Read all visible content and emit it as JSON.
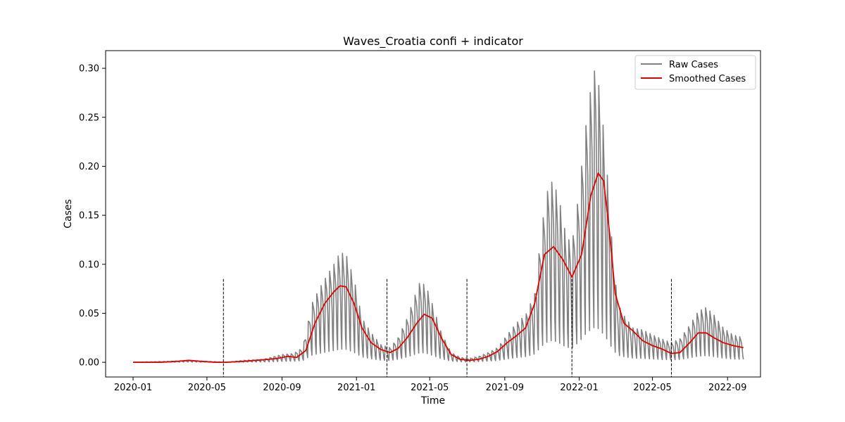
{
  "chart_data": {
    "type": "line",
    "title": "Waves_Croatia confi + indicator",
    "xlabel": "Time",
    "ylabel": "Cases",
    "xlim": [
      "2019-11-17",
      "2022-10-25"
    ],
    "ylim": [
      -0.015,
      0.318
    ],
    "x_ticks": [
      "2020-01",
      "2020-05",
      "2020-09",
      "2021-01",
      "2021-05",
      "2021-09",
      "2022-01",
      "2022-05",
      "2022-09"
    ],
    "y_ticks": [
      "0.00",
      "0.05",
      "0.10",
      "0.15",
      "0.20",
      "0.25",
      "0.30"
    ],
    "grid": false,
    "legend_position": "upper right",
    "legend": [
      "Raw Cases",
      "Smoothed Cases"
    ],
    "colors": {
      "raw": "#808080",
      "smoothed": "#e00000",
      "vlines": "#000000"
    },
    "wave_boundaries": [
      "2020-05-28",
      "2021-02-20",
      "2021-07-01",
      "2021-12-20",
      "2022-06-01"
    ],
    "vline_top": 0.085,
    "smoothed": {
      "x": [
        "2020-01-01",
        "2020-02-15",
        "2020-03-15",
        "2020-04-01",
        "2020-04-20",
        "2020-05-15",
        "2020-06-01",
        "2020-07-01",
        "2020-07-20",
        "2020-08-10",
        "2020-08-25",
        "2020-09-10",
        "2020-09-25",
        "2020-10-10",
        "2020-10-25",
        "2020-11-10",
        "2020-11-25",
        "2020-12-05",
        "2020-12-15",
        "2020-12-28",
        "2021-01-10",
        "2021-01-25",
        "2021-02-10",
        "2021-02-25",
        "2021-03-10",
        "2021-03-25",
        "2021-04-10",
        "2021-04-22",
        "2021-05-05",
        "2021-05-20",
        "2021-06-05",
        "2021-06-20",
        "2021-07-05",
        "2021-07-20",
        "2021-08-05",
        "2021-08-20",
        "2021-09-05",
        "2021-09-20",
        "2021-10-05",
        "2021-10-20",
        "2021-11-05",
        "2021-11-20",
        "2021-12-05",
        "2021-12-20",
        "2022-01-05",
        "2022-01-20",
        "2022-02-01",
        "2022-02-10",
        "2022-02-20",
        "2022-03-01",
        "2022-03-15",
        "2022-03-30",
        "2022-04-15",
        "2022-05-01",
        "2022-05-15",
        "2022-06-01",
        "2022-06-15",
        "2022-07-01",
        "2022-07-15",
        "2022-07-28",
        "2022-08-10",
        "2022-08-25",
        "2022-09-10",
        "2022-09-27"
      ],
      "y": [
        0.0,
        0.0,
        0.001,
        0.002,
        0.001,
        0.0,
        0.0,
        0.001,
        0.002,
        0.003,
        0.004,
        0.006,
        0.005,
        0.012,
        0.04,
        0.06,
        0.072,
        0.078,
        0.077,
        0.06,
        0.035,
        0.02,
        0.013,
        0.01,
        0.014,
        0.025,
        0.04,
        0.049,
        0.045,
        0.025,
        0.008,
        0.003,
        0.002,
        0.003,
        0.006,
        0.011,
        0.02,
        0.027,
        0.035,
        0.06,
        0.11,
        0.118,
        0.105,
        0.087,
        0.11,
        0.17,
        0.193,
        0.185,
        0.13,
        0.07,
        0.04,
        0.032,
        0.022,
        0.017,
        0.014,
        0.009,
        0.01,
        0.02,
        0.03,
        0.03,
        0.025,
        0.02,
        0.017,
        0.015
      ]
    },
    "raw": {
      "x": [
        "2020-01-01",
        "2020-03-01",
        "2020-04-01",
        "2020-05-01",
        "2020-06-01",
        "2020-07-01",
        "2020-08-01",
        "2020-09-01",
        "2020-09-20",
        "2020-10-05",
        "2020-10-20",
        "2020-11-01",
        "2020-11-15",
        "2020-11-25",
        "2020-12-05",
        "2020-12-15",
        "2020-12-28",
        "2021-01-10",
        "2021-01-25",
        "2021-02-10",
        "2021-02-25",
        "2021-03-10",
        "2021-03-25",
        "2021-04-05",
        "2021-04-15",
        "2021-04-25",
        "2021-05-05",
        "2021-05-20",
        "2021-06-05",
        "2021-06-20",
        "2021-07-05",
        "2021-07-20",
        "2021-08-05",
        "2021-08-20",
        "2021-09-05",
        "2021-09-20",
        "2021-10-05",
        "2021-10-20",
        "2021-11-01",
        "2021-11-12",
        "2021-11-20",
        "2021-12-01",
        "2021-12-10",
        "2021-12-20",
        "2022-01-01",
        "2022-01-10",
        "2022-01-20",
        "2022-01-28",
        "2022-02-05",
        "2022-02-15",
        "2022-02-25",
        "2022-03-05",
        "2022-03-15",
        "2022-03-30",
        "2022-04-15",
        "2022-05-01",
        "2022-05-15",
        "2022-06-01",
        "2022-06-15",
        "2022-07-01",
        "2022-07-15",
        "2022-07-28",
        "2022-08-10",
        "2022-08-25",
        "2022-09-10",
        "2022-09-27"
      ],
      "y": [
        0.0,
        0.001,
        0.002,
        0.001,
        0.0,
        0.002,
        0.003,
        0.008,
        0.009,
        0.015,
        0.06,
        0.075,
        0.09,
        0.1,
        0.112,
        0.11,
        0.085,
        0.045,
        0.03,
        0.018,
        0.015,
        0.025,
        0.045,
        0.065,
        0.082,
        0.078,
        0.06,
        0.03,
        0.01,
        0.005,
        0.004,
        0.006,
        0.01,
        0.015,
        0.028,
        0.04,
        0.048,
        0.07,
        0.14,
        0.182,
        0.185,
        0.16,
        0.13,
        0.12,
        0.175,
        0.232,
        0.28,
        0.303,
        0.27,
        0.2,
        0.11,
        0.06,
        0.048,
        0.035,
        0.033,
        0.028,
        0.024,
        0.02,
        0.024,
        0.038,
        0.052,
        0.056,
        0.048,
        0.035,
        0.028,
        0.025
      ]
    }
  }
}
